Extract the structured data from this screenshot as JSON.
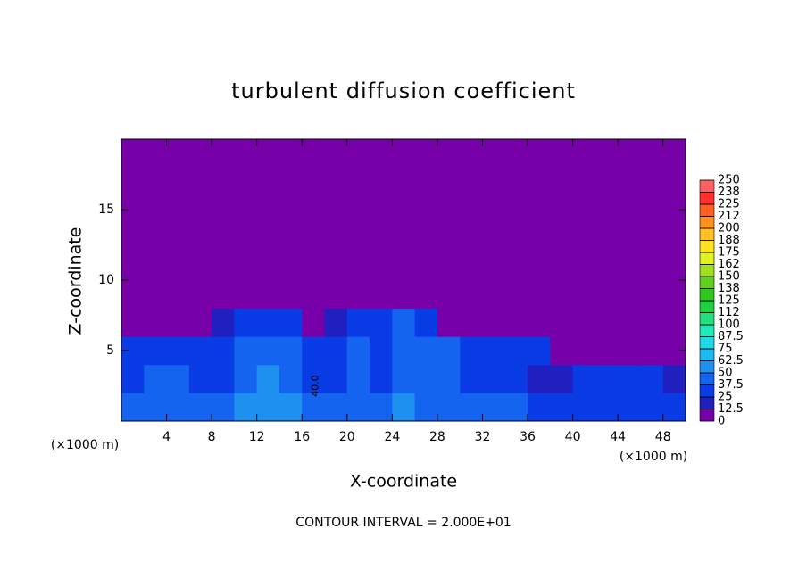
{
  "chart_data": {
    "type": "contourf",
    "title": "turbulent diffusion coefficient",
    "xlabel": "X-coordinate",
    "ylabel": "Z-coordinate",
    "x_unit": "(×1000 m)",
    "y_unit": "(×1000 m)",
    "footnote": "CONTOUR INTERVAL = 2.000E+01",
    "contour_label": "40.0",
    "x": [
      1,
      3,
      5,
      7,
      9,
      11,
      13,
      15,
      17,
      19,
      21,
      23,
      25,
      27,
      29,
      31,
      33,
      35,
      37,
      39,
      41,
      43,
      45,
      47,
      49
    ],
    "y": [
      1,
      3,
      5,
      7,
      9,
      11,
      13,
      15,
      17,
      19
    ],
    "z": [
      [
        45,
        45,
        45,
        45,
        45,
        50,
        60,
        50,
        40,
        40,
        45,
        45,
        50,
        45,
        45,
        40,
        40,
        40,
        35,
        30,
        35,
        35,
        35,
        35,
        30
      ],
      [
        30,
        40,
        40,
        35,
        30,
        45,
        50,
        40,
        30,
        35,
        40,
        35,
        45,
        40,
        40,
        35,
        35,
        30,
        20,
        15,
        25,
        25,
        30,
        30,
        20
      ],
      [
        30,
        35,
        35,
        35,
        30,
        40,
        45,
        45,
        35,
        35,
        40,
        35,
        45,
        40,
        40,
        35,
        35,
        35,
        25,
        10,
        5,
        5,
        10,
        5,
        0
      ],
      [
        0,
        0,
        5,
        10,
        20,
        25,
        35,
        30,
        10,
        20,
        30,
        35,
        40,
        25,
        10,
        5,
        5,
        0,
        0,
        0,
        0,
        0,
        0,
        0,
        0
      ],
      [
        0,
        0,
        0,
        0,
        0,
        0,
        0,
        0,
        0,
        0,
        0,
        0,
        10,
        5,
        0,
        0,
        0,
        0,
        0,
        0,
        0,
        0,
        0,
        0,
        0
      ],
      [
        0,
        0,
        0,
        0,
        0,
        0,
        0,
        0,
        0,
        0,
        0,
        0,
        0,
        0,
        0,
        0,
        0,
        0,
        0,
        0,
        0,
        0,
        0,
        0,
        0
      ],
      [
        0,
        0,
        0,
        0,
        0,
        0,
        0,
        0,
        0,
        0,
        0,
        0,
        0,
        0,
        0,
        0,
        0,
        0,
        0,
        0,
        0,
        0,
        0,
        0,
        0
      ],
      [
        0,
        0,
        0,
        0,
        0,
        0,
        0,
        0,
        0,
        0,
        0,
        0,
        0,
        0,
        0,
        0,
        0,
        0,
        0,
        0,
        0,
        0,
        0,
        0,
        0
      ],
      [
        0,
        0,
        0,
        0,
        0,
        0,
        0,
        0,
        0,
        0,
        0,
        0,
        0,
        0,
        0,
        0,
        0,
        0,
        0,
        0,
        0,
        0,
        0,
        0,
        0
      ],
      [
        0,
        0,
        0,
        0,
        0,
        0,
        0,
        0,
        0,
        0,
        0,
        0,
        0,
        0,
        0,
        0,
        0,
        0,
        0,
        0,
        0,
        0,
        0,
        0,
        0
      ]
    ],
    "xlim": [
      0,
      50
    ],
    "ylim": [
      0,
      20
    ],
    "xticks": [
      4,
      8,
      12,
      16,
      20,
      24,
      28,
      32,
      36,
      40,
      44,
      48
    ],
    "yticks": [
      5,
      10,
      15
    ],
    "levels": [
      0,
      12.5,
      25,
      37.5,
      50,
      62.5,
      75,
      87.5,
      100,
      {
        "value": 112.5,
        "label": "112"
      },
      125,
      {
        "value": 137.5,
        "label": "138"
      },
      150,
      {
        "value": 162.5,
        "label": "162"
      },
      175,
      {
        "value": 187.5,
        "label": "188"
      },
      200,
      {
        "value": 212.5,
        "label": "212"
      },
      225,
      {
        "value": 237.5,
        "label": "238"
      },
      250
    ],
    "colors": [
      "#7800a8",
      "#2020c0",
      "#0a3ce6",
      "#1464f0",
      "#1e90f0",
      "#20b8f0",
      "#20d8e8",
      "#20e8b8",
      "#20e080",
      "#20d040",
      "#30c820",
      "#60d020",
      "#a0e020",
      "#e0f020",
      "#ffe020",
      "#ffc020",
      "#ff9020",
      "#ff6020",
      "#ff3030",
      "#ff6060"
    ]
  }
}
